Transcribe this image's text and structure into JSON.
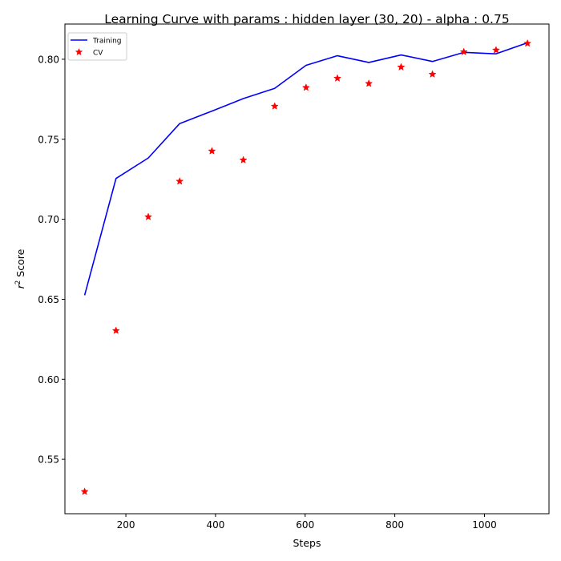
{
  "chart_data": {
    "type": "line",
    "title": "Learning Curve with params : hidden layer (30, 20) - alpha : 0.75",
    "xlabel": "Steps",
    "ylabel": "r",
    "ylabel_sup": "2",
    "ylabel_rest": " Score",
    "xlim": [
      64,
      1144
    ],
    "ylim": [
      0.516,
      0.822
    ],
    "xticks": [
      200,
      400,
      600,
      800,
      1000
    ],
    "yticks": [
      0.55,
      0.6,
      0.65,
      0.7,
      0.75,
      0.8
    ],
    "xtick_labels": [
      "200",
      "400",
      "600",
      "800",
      "1000"
    ],
    "ytick_labels": [
      "0.55",
      "0.60",
      "0.65",
      "0.70",
      "0.75",
      "0.80"
    ],
    "grid": false,
    "legend_position": "top-left",
    "series": [
      {
        "name": "Training",
        "style": "line",
        "color": "#0000ff",
        "x": [
          108,
          178,
          250,
          320,
          392,
          462,
          532,
          602,
          672,
          742,
          814,
          884,
          954,
          1026,
          1096
        ],
        "y": [
          0.6525,
          0.7255,
          0.7383,
          0.7598,
          0.7676,
          0.7754,
          0.7818,
          0.7962,
          0.8022,
          0.798,
          0.8027,
          0.7986,
          0.8043,
          0.8034,
          0.8103
        ]
      },
      {
        "name": "CV",
        "style": "marker-star",
        "color": "#ff0000",
        "x": [
          108,
          178,
          250,
          320,
          392,
          462,
          532,
          602,
          672,
          742,
          814,
          884,
          954,
          1026,
          1096
        ],
        "y": [
          0.5298,
          0.6304,
          0.7015,
          0.7237,
          0.7426,
          0.737,
          0.7706,
          0.7823,
          0.7881,
          0.7848,
          0.7951,
          0.7906,
          0.8046,
          0.8057,
          0.8099
        ]
      }
    ]
  }
}
